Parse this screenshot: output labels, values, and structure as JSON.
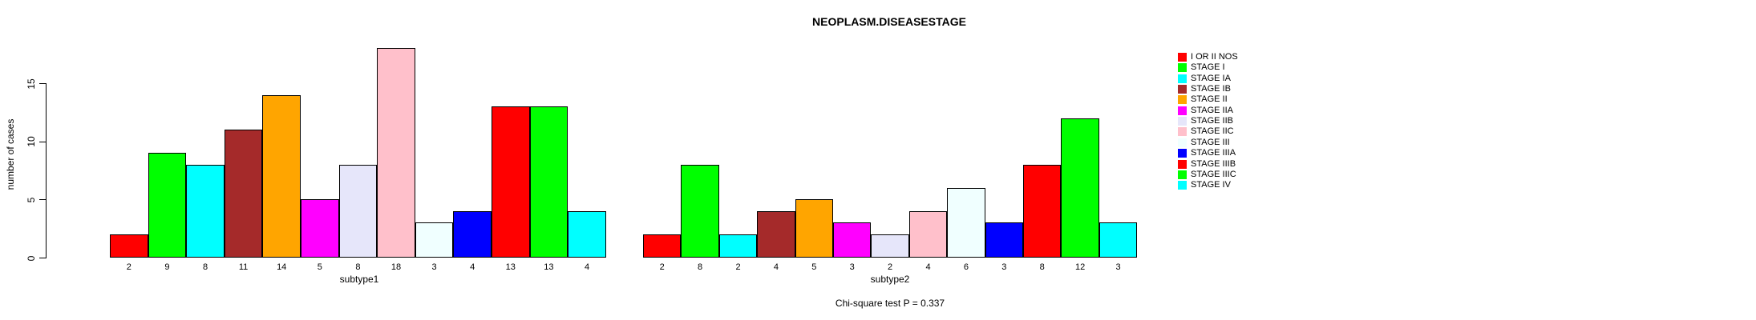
{
  "title": "NEOPLASM.DISEASESTAGE",
  "ylabel": "number of cases",
  "footer": "Chi-square test P = 0.337",
  "palette": {
    "red": "#FF0000",
    "green": "#00FF00",
    "cyan": "#00FFFF",
    "brown": "#A52A2A",
    "orange": "#FFA500",
    "magenta": "#FF00FF",
    "lavender": "#E6E6FA",
    "pink": "#FFC0CB",
    "azure": "#F0FFFF",
    "blue": "#0000FF"
  },
  "chart_data": [
    {
      "type": "bar",
      "xlabel": "subtype1",
      "ylabel": "number of cases",
      "ylim": [
        0,
        15
      ],
      "yticks": [
        0,
        5,
        10,
        15
      ],
      "grid": false,
      "categories": [
        "I OR II NOS",
        "STAGE I",
        "STAGE IA",
        "STAGE IB",
        "STAGE II",
        "STAGE IIA",
        "STAGE IIB",
        "STAGE IIC",
        "STAGE III",
        "STAGE IIIA",
        "STAGE IIIB",
        "STAGE IIIC",
        "STAGE IV"
      ],
      "values": [
        2,
        9,
        8,
        11,
        14,
        5,
        8,
        18,
        3,
        4,
        13,
        13,
        4
      ],
      "bar_labels": [
        "2",
        "9",
        "8",
        "11",
        "14",
        "5",
        "8",
        "18",
        "3",
        "4",
        "13",
        "13",
        "4"
      ],
      "bar_colors": [
        "#FF0000",
        "#00FF00",
        "#00FFFF",
        "#A52A2A",
        "#FFA500",
        "#FF00FF",
        "#E6E6FA",
        "#FFC0CB",
        "#F0FFFF",
        "#0000FF",
        "#FF0000",
        "#00FF00",
        "#00FFFF"
      ]
    },
    {
      "type": "bar",
      "xlabel": "subtype2",
      "ylabel": "number of cases",
      "ylim": [
        0,
        15
      ],
      "yticks": [
        0,
        5,
        10,
        15
      ],
      "grid": false,
      "categories": [
        "I OR II NOS",
        "STAGE I",
        "STAGE IA",
        "STAGE IB",
        "STAGE II",
        "STAGE IIA",
        "STAGE IIB",
        "STAGE IIC",
        "STAGE III",
        "STAGE IIIA",
        "STAGE IIIB",
        "STAGE IIIC",
        "STAGE IV"
      ],
      "values": [
        2,
        8,
        2,
        4,
        5,
        3,
        2,
        4,
        6,
        3,
        8,
        12,
        3
      ],
      "bar_labels": [
        "2",
        "8",
        "2",
        "4",
        "5",
        "3",
        "2",
        "4",
        "6",
        "3",
        "8",
        "12",
        "3"
      ],
      "bar_colors": [
        "#FF0000",
        "#00FF00",
        "#00FFFF",
        "#A52A2A",
        "#FFA500",
        "#FF00FF",
        "#E6E6FA",
        "#FFC0CB",
        "#F0FFFF",
        "#0000FF",
        "#FF0000",
        "#00FF00",
        "#00FFFF"
      ]
    }
  ],
  "legend": {
    "position": "right",
    "entries": [
      {
        "label": "I OR II NOS",
        "color": "#FF0000"
      },
      {
        "label": "STAGE I",
        "color": "#00FF00"
      },
      {
        "label": "STAGE IA",
        "color": "#00FFFF"
      },
      {
        "label": "STAGE IB",
        "color": "#A52A2A"
      },
      {
        "label": "STAGE II",
        "color": "#FFA500"
      },
      {
        "label": "STAGE IIA",
        "color": "#FF00FF"
      },
      {
        "label": "STAGE IIB",
        "color": "#E6E6FA"
      },
      {
        "label": "STAGE IIC",
        "color": "#FFC0CB"
      },
      {
        "label": "STAGE III",
        "color": "#F0FFFF"
      },
      {
        "label": "STAGE IIIA",
        "color": "#0000FF"
      },
      {
        "label": "STAGE IIIB",
        "color": "#FF0000"
      },
      {
        "label": "STAGE IIIC",
        "color": "#00FF00"
      },
      {
        "label": "STAGE IV",
        "color": "#00FFFF"
      }
    ]
  }
}
